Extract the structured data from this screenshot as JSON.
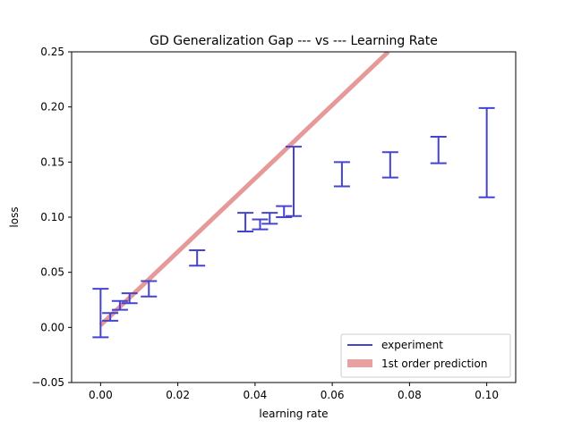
{
  "chart_data": {
    "type": "scatter",
    "title": "GD Generalization Gap --- vs --- Learning Rate",
    "xlabel": "learning rate",
    "ylabel": "loss",
    "xlim": [
      -0.0075,
      0.1075
    ],
    "ylim": [
      -0.05,
      0.25
    ],
    "xticks": [
      0.0,
      0.02,
      0.04,
      0.06,
      0.08,
      0.1
    ],
    "xtick_labels": [
      "0.00",
      "0.02",
      "0.04",
      "0.06",
      "0.08",
      "0.10"
    ],
    "yticks": [
      -0.05,
      0.0,
      0.05,
      0.1,
      0.15,
      0.2,
      0.25
    ],
    "ytick_labels": [
      "−0.05",
      "0.00",
      "0.05",
      "0.10",
      "0.15",
      "0.20",
      "0.25"
    ],
    "grid": false,
    "legend_position": "bottom-right",
    "series": [
      {
        "name": "experiment",
        "kind": "errorbar",
        "color": "#4444cc",
        "points": [
          {
            "x": 0.0,
            "low": -0.009,
            "high": 0.035
          },
          {
            "x": 0.0025,
            "low": 0.006,
            "high": 0.013
          },
          {
            "x": 0.005,
            "low": 0.016,
            "high": 0.024
          },
          {
            "x": 0.0075,
            "low": 0.022,
            "high": 0.031
          },
          {
            "x": 0.0125,
            "low": 0.028,
            "high": 0.042
          },
          {
            "x": 0.025,
            "low": 0.056,
            "high": 0.07
          },
          {
            "x": 0.0375,
            "low": 0.087,
            "high": 0.104
          },
          {
            "x": 0.0413,
            "low": 0.089,
            "high": 0.098
          },
          {
            "x": 0.0438,
            "low": 0.094,
            "high": 0.104
          },
          {
            "x": 0.0475,
            "low": 0.1,
            "high": 0.11
          },
          {
            "x": 0.05,
            "low": 0.101,
            "high": 0.164
          },
          {
            "x": 0.0625,
            "low": 0.128,
            "high": 0.15
          },
          {
            "x": 0.075,
            "low": 0.136,
            "high": 0.159
          },
          {
            "x": 0.0875,
            "low": 0.149,
            "high": 0.173
          },
          {
            "x": 0.1,
            "low": 0.118,
            "high": 0.199
          }
        ]
      },
      {
        "name": "1st order prediction",
        "kind": "line",
        "color": "#e08080",
        "x": [
          0.0,
          0.0745
        ],
        "y": [
          0.002,
          0.25
        ]
      }
    ]
  }
}
